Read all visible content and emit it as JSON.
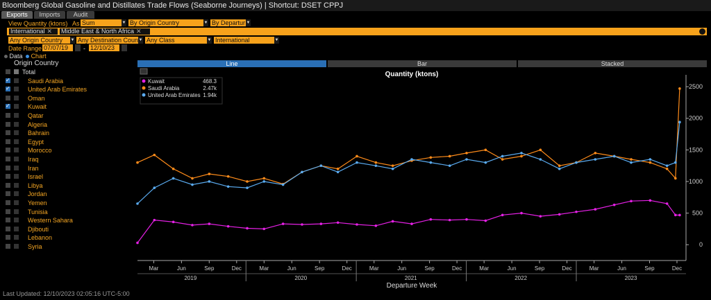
{
  "window": {
    "title": "Bloomberg Global Gasoline and Distillates Trade Flows (Seaborne Journeys) | Shortcut: DSET CPPJ",
    "tabs": [
      "Exports",
      "Imports",
      "Audit"
    ]
  },
  "controls": {
    "view_quantity_label": "View Quantity (ktons)",
    "as_label": "As",
    "aggregation": "Sum",
    "group_by": "By Origin Country",
    "departure": "By Departur",
    "chips": [
      "International",
      "Middle East & North Africa"
    ],
    "origin": "Any Origin Country",
    "destination": "Any Destination Coun",
    "class": "Any Class",
    "scope": "International",
    "date_range_label": "Date Range",
    "date_start": "07/07/19",
    "date_end": "12/10/23"
  },
  "sidebar": {
    "data_label": "Data",
    "chart_label": "Chart",
    "column_header": "Origin Country",
    "total_label": "Total",
    "countries": [
      {
        "name": "Saudi Arabia",
        "checked": true
      },
      {
        "name": "United Arab Emirates",
        "checked": true
      },
      {
        "name": "Oman",
        "checked": false
      },
      {
        "name": "Kuwait",
        "checked": true
      },
      {
        "name": "Qatar",
        "checked": false
      },
      {
        "name": "Algeria",
        "checked": false
      },
      {
        "name": "Bahrain",
        "checked": false
      },
      {
        "name": "Egypt",
        "checked": false
      },
      {
        "name": "Morocco",
        "checked": false
      },
      {
        "name": "Iraq",
        "checked": false
      },
      {
        "name": "Iran",
        "checked": false
      },
      {
        "name": "Israel",
        "checked": false
      },
      {
        "name": "Libya",
        "checked": false
      },
      {
        "name": "Jordan",
        "checked": false
      },
      {
        "name": "Yemen",
        "checked": false
      },
      {
        "name": "Tunisia",
        "checked": false
      },
      {
        "name": "Western Sahara",
        "checked": false
      },
      {
        "name": "Djibouti",
        "checked": false
      },
      {
        "name": "Lebanon",
        "checked": false
      },
      {
        "name": "Syria",
        "checked": false
      }
    ]
  },
  "chart_modes": [
    "Line",
    "Bar",
    "Stacked"
  ],
  "footer": "Last Updated: 12/10/2023 02:05:16 UTC-5:00",
  "colors": {
    "Kuwait": "#e520e5",
    "Saudi Arabia": "#ff8c1a",
    "United Arab Emirates": "#5aabf0",
    "accent": "#f7a21b",
    "active_tab": "#2a6fb5"
  },
  "chart_data": {
    "type": "line",
    "title": "Quantity (ktons)",
    "xlabel": "Departure Week",
    "ylabel": "",
    "ylim": [
      -250,
      2600
    ],
    "yticks": [
      0,
      500,
      1000,
      1500,
      2000,
      2500
    ],
    "xlim": [
      "2019-01-06",
      "2023-12-31"
    ],
    "x_month_ticks": [
      {
        "label": "Mar",
        "date": "2019-03-01"
      },
      {
        "label": "Jun",
        "date": "2019-06-01"
      },
      {
        "label": "Sep",
        "date": "2019-09-01"
      },
      {
        "label": "Dec",
        "date": "2019-12-01"
      },
      {
        "label": "Mar",
        "date": "2020-03-01"
      },
      {
        "label": "Jun",
        "date": "2020-06-01"
      },
      {
        "label": "Sep",
        "date": "2020-09-01"
      },
      {
        "label": "Dec",
        "date": "2020-12-01"
      },
      {
        "label": "Mar",
        "date": "2021-03-01"
      },
      {
        "label": "Jun",
        "date": "2021-06-01"
      },
      {
        "label": "Sep",
        "date": "2021-09-01"
      },
      {
        "label": "Dec",
        "date": "2021-12-01"
      },
      {
        "label": "Mar",
        "date": "2022-03-01"
      },
      {
        "label": "Jun",
        "date": "2022-06-01"
      },
      {
        "label": "Sep",
        "date": "2022-09-01"
      },
      {
        "label": "Dec",
        "date": "2022-12-01"
      },
      {
        "label": "Mar",
        "date": "2023-03-01"
      },
      {
        "label": "Jun",
        "date": "2023-06-01"
      },
      {
        "label": "Sep",
        "date": "2023-09-01"
      },
      {
        "label": "Dec",
        "date": "2023-12-01"
      }
    ],
    "x_year_ticks": [
      {
        "label": "2019",
        "date": "2019-07-01"
      },
      {
        "label": "2020",
        "date": "2020-07-01"
      },
      {
        "label": "2021",
        "date": "2021-07-01"
      },
      {
        "label": "2022",
        "date": "2022-07-01"
      },
      {
        "label": "2023",
        "date": "2023-07-01"
      }
    ],
    "legend": [
      {
        "name": "Kuwait",
        "value": "468.3"
      },
      {
        "name": "Saudi Arabia",
        "value": "2.47k"
      },
      {
        "name": "United Arab Emirates",
        "value": "1.94k"
      }
    ],
    "legend_position": "top-left",
    "grid": false,
    "series": [
      {
        "name": "Kuwait",
        "x": [
          "2019-01-06",
          "2019-03-03",
          "2019-05-05",
          "2019-07-07",
          "2019-09-01",
          "2019-11-03",
          "2020-01-05",
          "2020-03-01",
          "2020-05-03",
          "2020-07-05",
          "2020-09-06",
          "2020-11-01",
          "2021-01-03",
          "2021-03-07",
          "2021-05-02",
          "2021-07-04",
          "2021-09-05",
          "2021-11-07",
          "2022-01-02",
          "2022-03-06",
          "2022-05-01",
          "2022-07-03",
          "2022-09-04",
          "2022-11-06",
          "2023-01-01",
          "2023-03-05",
          "2023-05-07",
          "2023-07-02",
          "2023-09-03",
          "2023-10-29",
          "2023-11-26",
          "2023-12-10"
        ],
        "y": [
          30,
          390,
          360,
          310,
          330,
          290,
          260,
          250,
          330,
          320,
          330,
          350,
          320,
          300,
          370,
          330,
          400,
          390,
          400,
          380,
          470,
          500,
          450,
          480,
          520,
          560,
          630,
          690,
          700,
          650,
          470,
          468.3
        ]
      },
      {
        "name": "Saudi Arabia",
        "x": [
          "2019-01-06",
          "2019-03-03",
          "2019-05-05",
          "2019-07-07",
          "2019-09-01",
          "2019-11-03",
          "2020-01-05",
          "2020-03-01",
          "2020-05-03",
          "2020-07-05",
          "2020-09-06",
          "2020-11-01",
          "2021-01-03",
          "2021-03-07",
          "2021-05-02",
          "2021-07-04",
          "2021-09-05",
          "2021-11-07",
          "2022-01-02",
          "2022-03-06",
          "2022-05-01",
          "2022-07-03",
          "2022-09-04",
          "2022-11-06",
          "2023-01-01",
          "2023-03-05",
          "2023-05-07",
          "2023-07-02",
          "2023-09-03",
          "2023-10-29",
          "2023-11-26",
          "2023-12-10"
        ],
        "y": [
          1300,
          1420,
          1200,
          1050,
          1120,
          1080,
          1000,
          1050,
          960,
          1150,
          1250,
          1200,
          1400,
          1300,
          1250,
          1330,
          1380,
          1400,
          1450,
          1500,
          1350,
          1400,
          1500,
          1250,
          1300,
          1450,
          1400,
          1350,
          1300,
          1200,
          1050,
          2470
        ]
      },
      {
        "name": "United Arab Emirates",
        "x": [
          "2019-01-06",
          "2019-03-03",
          "2019-05-05",
          "2019-07-07",
          "2019-09-01",
          "2019-11-03",
          "2020-01-05",
          "2020-03-01",
          "2020-05-03",
          "2020-07-05",
          "2020-09-06",
          "2020-11-01",
          "2021-01-03",
          "2021-03-07",
          "2021-05-02",
          "2021-07-04",
          "2021-09-05",
          "2021-11-07",
          "2022-01-02",
          "2022-03-06",
          "2022-05-01",
          "2022-07-03",
          "2022-09-04",
          "2022-11-06",
          "2023-01-01",
          "2023-03-05",
          "2023-05-07",
          "2023-07-02",
          "2023-09-03",
          "2023-10-29",
          "2023-11-26",
          "2023-12-10"
        ],
        "y": [
          650,
          900,
          1050,
          950,
          1000,
          920,
          900,
          1000,
          950,
          1150,
          1250,
          1150,
          1300,
          1250,
          1200,
          1350,
          1300,
          1250,
          1350,
          1300,
          1400,
          1450,
          1350,
          1200,
          1300,
          1350,
          1400,
          1300,
          1350,
          1250,
          1300,
          1940
        ]
      }
    ]
  }
}
